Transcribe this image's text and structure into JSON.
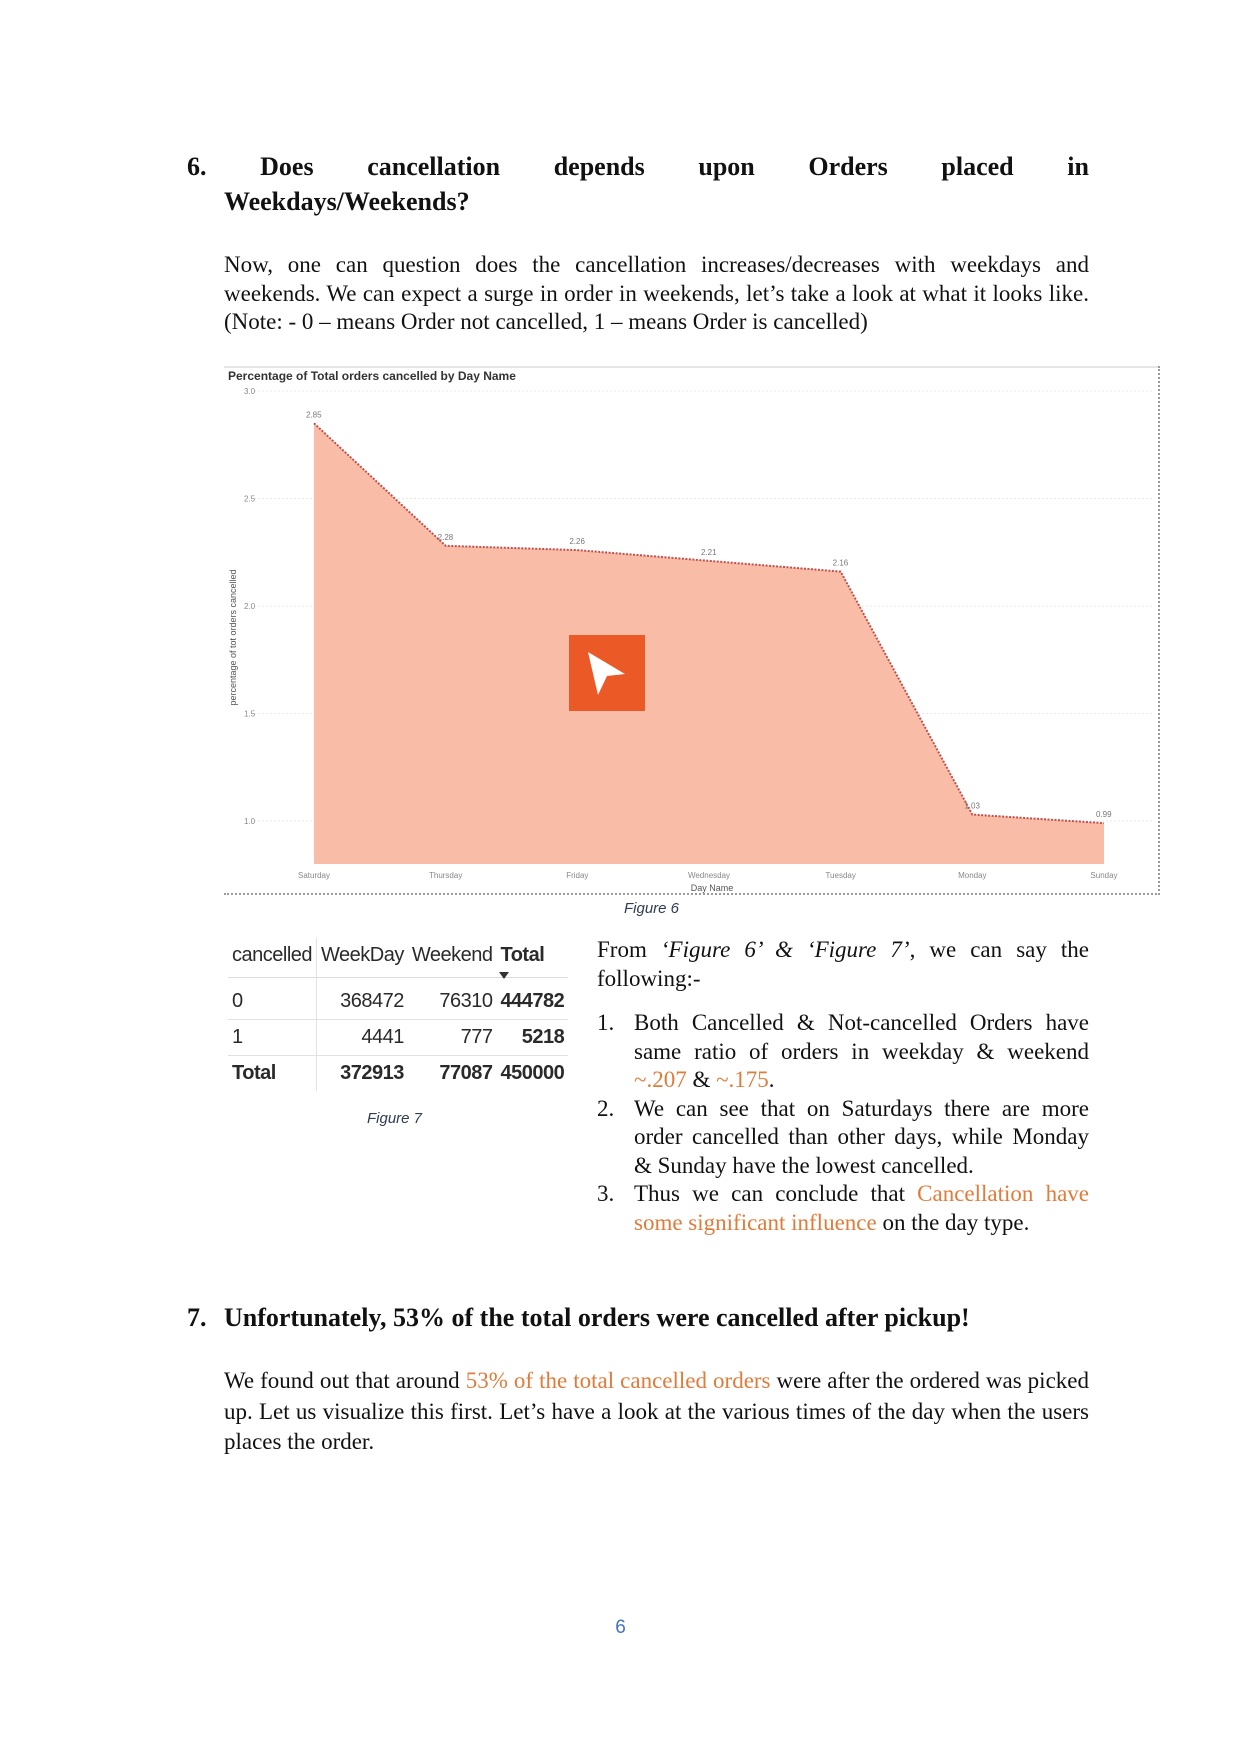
{
  "section6": {
    "number": "6.",
    "heading_words": [
      "Does",
      "cancellation",
      "depends",
      "upon",
      "Orders",
      "placed",
      "in"
    ],
    "heading_line2": "Weekdays/Weekends?",
    "intro": "Now, one can question does the cancellation increases/decreases with weekdays and weekends. We can expect a surge in order in weekends, let’s take a look at what it looks like. (Note: - 0 – means Order not cancelled, 1 – means Order is cancelled)"
  },
  "chart_data": {
    "type": "area",
    "title": "Percentage of Total orders cancelled by Day Name",
    "xlabel": "Day Name",
    "ylabel": "percentage of tot orders cancelled",
    "categories": [
      "Saturday",
      "Thursday",
      "Friday",
      "Wednesday",
      "Tuesday",
      "Monday",
      "Sunday"
    ],
    "values": [
      2.85,
      2.28,
      2.26,
      2.21,
      2.16,
      1.03,
      0.99
    ],
    "data_labels": [
      "2.85",
      "2.28",
      "2.26",
      "2.21",
      "2.16",
      "1.03",
      "0.99"
    ],
    "yticks": [
      "3.0",
      "2.5",
      "2.0",
      "1.5",
      "1.0"
    ],
    "ytick_values": [
      3.0,
      2.5,
      2.0,
      1.5,
      1.0
    ],
    "ylim": [
      0.8,
      3.0
    ],
    "fill_color": "#F9BCA6",
    "line_color": "#C0504D",
    "grid": true
  },
  "figure6_caption": "Figure 6",
  "figure7": {
    "headers": [
      "cancelled",
      "WeekDay",
      "Weekend",
      "Total"
    ],
    "rows": [
      {
        "label": "0",
        "weekday": "368472",
        "weekend": "76310",
        "total": "444782"
      },
      {
        "label": "1",
        "weekday": "4441",
        "weekend": "777",
        "total": "5218"
      }
    ],
    "totals": {
      "label": "Total",
      "weekday": "372913",
      "weekend": "77087",
      "total": "450000"
    },
    "caption": "Figure 7"
  },
  "findings": {
    "intro_from": "From ",
    "intro_fig6": "‘Figure 6’",
    "intro_amp": " & ",
    "intro_fig7": "‘Figure 7’",
    "intro_rest": ", we can say the following:-",
    "items": [
      {
        "num": "1.",
        "text": "Both Cancelled & Not-cancelled Orders have same ratio of orders in weekday & weekend ",
        "accent1": "~.207",
        "mid": " & ",
        "accent2": "~.175",
        "end": "."
      },
      {
        "num": "2.",
        "text": "We can see that on Saturdays there are more order cancelled than other days, while Monday & Sunday have the lowest cancelled."
      },
      {
        "num": "3.",
        "text": "Thus we can conclude that ",
        "accent": "Cancellation have some significant influence",
        "end": " on the day type."
      }
    ]
  },
  "section7": {
    "number": "7.",
    "heading": "Unfortunately, 53% of the total orders were cancelled after pickup!",
    "p_start": "We found out that around ",
    "p_accent": "53% of the total cancelled orders",
    "p_end": " were after the ordered was picked up. Let us visualize this first. Let’s have a look at the various times of the day when the users places the order."
  },
  "page_number": "6",
  "colors": {
    "accent": "#E07B39",
    "logo": "#EB5A26",
    "caption": "#2E3C56",
    "page_number": "#4472C4"
  }
}
